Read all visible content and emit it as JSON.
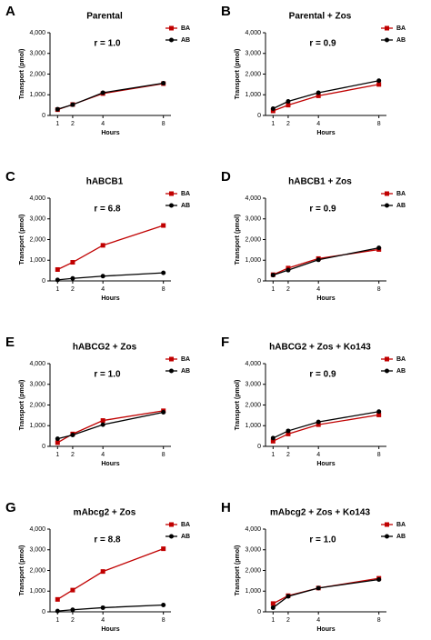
{
  "chart_data": [
    {
      "type": "line",
      "panel_label": "A",
      "title": "Parental",
      "annotation": "r = 1.0",
      "x": [
        1,
        2,
        4,
        8
      ],
      "xlim": [
        0.5,
        8.5
      ],
      "xticks": [
        1,
        2,
        4,
        8
      ],
      "xlabel": "Hours",
      "ylabel": "Transport (pmol)",
      "ylim": [
        0,
        4000
      ],
      "yticks": [
        0,
        {
          "value": 1000,
          "label": "1,000"
        },
        {
          "value": 2000,
          "label": "2,000"
        },
        {
          "value": 3000,
          "label": "3,000"
        },
        {
          "value": 4000,
          "label": "4,000"
        }
      ],
      "series": [
        {
          "name": "BA",
          "color": "#c00000",
          "marker": "square",
          "values": [
            280,
            530,
            1060,
            1540
          ]
        },
        {
          "name": "AB",
          "color": "#000000",
          "marker": "circle",
          "values": [
            300,
            520,
            1100,
            1560
          ]
        }
      ]
    },
    {
      "type": "line",
      "panel_label": "B",
      "title": "Parental + Zos",
      "annotation": "r = 0.9",
      "x": [
        1,
        2,
        4,
        8
      ],
      "xlim": [
        0.5,
        8.5
      ],
      "xticks": [
        1,
        2,
        4,
        8
      ],
      "xlabel": "Hours",
      "ylabel": "Transport (pmol)",
      "ylim": [
        0,
        4000
      ],
      "yticks": [
        0,
        {
          "value": 1000,
          "label": "1,000"
        },
        {
          "value": 2000,
          "label": "2,000"
        },
        {
          "value": 3000,
          "label": "3,000"
        },
        {
          "value": 4000,
          "label": "4,000"
        }
      ],
      "series": [
        {
          "name": "BA",
          "color": "#c00000",
          "marker": "square",
          "values": [
            220,
            500,
            950,
            1500
          ]
        },
        {
          "name": "AB",
          "color": "#000000",
          "marker": "circle",
          "values": [
            330,
            680,
            1100,
            1680
          ]
        }
      ]
    },
    {
      "type": "line",
      "panel_label": "C",
      "title": "hABCB1",
      "annotation": "r = 6.8",
      "x": [
        1,
        2,
        4,
        8
      ],
      "xlim": [
        0.5,
        8.5
      ],
      "xticks": [
        1,
        2,
        4,
        8
      ],
      "xlabel": "Hours",
      "ylabel": "Transport (pmol)",
      "ylim": [
        0,
        4000
      ],
      "yticks": [
        0,
        {
          "value": 1000,
          "label": "1,000"
        },
        {
          "value": 2000,
          "label": "2,000"
        },
        {
          "value": 3000,
          "label": "3,000"
        },
        {
          "value": 4000,
          "label": "4,000"
        }
      ],
      "series": [
        {
          "name": "BA",
          "color": "#c00000",
          "marker": "square",
          "values": [
            550,
            900,
            1720,
            2680
          ]
        },
        {
          "name": "AB",
          "color": "#000000",
          "marker": "circle",
          "values": [
            50,
            120,
            230,
            390
          ]
        }
      ]
    },
    {
      "type": "line",
      "panel_label": "D",
      "title": "hABCB1 + Zos",
      "annotation": "r = 0.9",
      "x": [
        1,
        2,
        4,
        8
      ],
      "xlim": [
        0.5,
        8.5
      ],
      "xticks": [
        1,
        2,
        4,
        8
      ],
      "xlabel": "Hours",
      "ylabel": "Transport (pmol)",
      "ylim": [
        0,
        4000
      ],
      "yticks": [
        0,
        {
          "value": 1000,
          "label": "1,000"
        },
        {
          "value": 2000,
          "label": "2,000"
        },
        {
          "value": 3000,
          "label": "3,000"
        },
        {
          "value": 4000,
          "label": "4,000"
        }
      ],
      "series": [
        {
          "name": "BA",
          "color": "#c00000",
          "marker": "square",
          "values": [
            300,
            620,
            1080,
            1520
          ]
        },
        {
          "name": "AB",
          "color": "#000000",
          "marker": "circle",
          "values": [
            280,
            520,
            1020,
            1600
          ]
        }
      ]
    },
    {
      "type": "line",
      "panel_label": "E",
      "title": "hABCG2 + Zos",
      "annotation": "r = 1.0",
      "x": [
        1,
        2,
        4,
        8
      ],
      "xlim": [
        0.5,
        8.5
      ],
      "xticks": [
        1,
        2,
        4,
        8
      ],
      "xlabel": "Hours",
      "ylabel": "Transport (pmol)",
      "ylim": [
        0,
        4000
      ],
      "yticks": [
        0,
        {
          "value": 1000,
          "label": "1,000"
        },
        {
          "value": 2000,
          "label": "2,000"
        },
        {
          "value": 3000,
          "label": "3,000"
        },
        {
          "value": 4000,
          "label": "4,000"
        }
      ],
      "series": [
        {
          "name": "BA",
          "color": "#c00000",
          "marker": "square",
          "values": [
            180,
            600,
            1250,
            1720
          ]
        },
        {
          "name": "AB",
          "color": "#000000",
          "marker": "circle",
          "values": [
            370,
            550,
            1050,
            1650
          ]
        }
      ]
    },
    {
      "type": "line",
      "panel_label": "F",
      "title": "hABCG2 + Zos + Ko143",
      "annotation": "r = 0.9",
      "x": [
        1,
        2,
        4,
        8
      ],
      "xlim": [
        0.5,
        8.5
      ],
      "xticks": [
        1,
        2,
        4,
        8
      ],
      "xlabel": "Hours",
      "ylabel": "Transport (pmol)",
      "ylim": [
        0,
        4000
      ],
      "yticks": [
        0,
        {
          "value": 1000,
          "label": "1,000"
        },
        {
          "value": 2000,
          "label": "2,000"
        },
        {
          "value": 3000,
          "label": "3,000"
        },
        {
          "value": 4000,
          "label": "4,000"
        }
      ],
      "series": [
        {
          "name": "BA",
          "color": "#c00000",
          "marker": "square",
          "values": [
            250,
            600,
            1050,
            1520
          ]
        },
        {
          "name": "AB",
          "color": "#000000",
          "marker": "circle",
          "values": [
            400,
            750,
            1180,
            1680
          ]
        }
      ]
    },
    {
      "type": "line",
      "panel_label": "G",
      "title": "mAbcg2 + Zos",
      "annotation": "r = 8.8",
      "x": [
        1,
        2,
        4,
        8
      ],
      "xlim": [
        0.5,
        8.5
      ],
      "xticks": [
        1,
        2,
        4,
        8
      ],
      "xlabel": "Hours",
      "ylabel": "Transport (pmol)",
      "ylim": [
        0,
        4000
      ],
      "yticks": [
        0,
        {
          "value": 1000,
          "label": "1,000"
        },
        {
          "value": 2000,
          "label": "2,000"
        },
        {
          "value": 3000,
          "label": "3,000"
        },
        {
          "value": 4000,
          "label": "4,000"
        }
      ],
      "series": [
        {
          "name": "BA",
          "color": "#c00000",
          "marker": "square",
          "values": [
            600,
            1050,
            1950,
            3050
          ]
        },
        {
          "name": "AB",
          "color": "#000000",
          "marker": "circle",
          "values": [
            40,
            100,
            200,
            330
          ]
        }
      ]
    },
    {
      "type": "line",
      "panel_label": "H",
      "title": "mAbcg2 + Zos + Ko143",
      "annotation": "r = 1.0",
      "x": [
        1,
        2,
        4,
        8
      ],
      "xlim": [
        0.5,
        8.5
      ],
      "xticks": [
        1,
        2,
        4,
        8
      ],
      "xlabel": "Hours",
      "ylabel": "Transport (pmol)",
      "ylim": [
        0,
        4000
      ],
      "yticks": [
        0,
        {
          "value": 1000,
          "label": "1,000"
        },
        {
          "value": 2000,
          "label": "2,000"
        },
        {
          "value": 3000,
          "label": "3,000"
        },
        {
          "value": 4000,
          "label": "4,000"
        }
      ],
      "series": [
        {
          "name": "BA",
          "color": "#c00000",
          "marker": "square",
          "values": [
            400,
            780,
            1150,
            1620
          ]
        },
        {
          "name": "AB",
          "color": "#000000",
          "marker": "circle",
          "values": [
            200,
            750,
            1150,
            1560
          ]
        }
      ]
    }
  ]
}
